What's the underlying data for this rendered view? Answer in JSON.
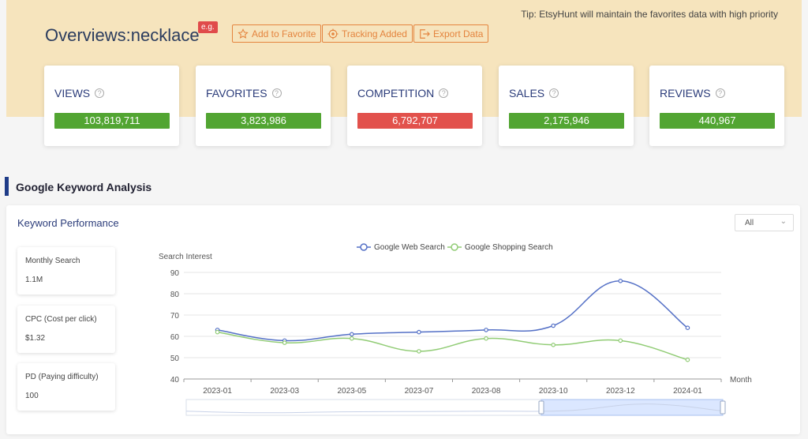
{
  "header": {
    "tip": "Tip: EtsyHunt will maintain the favorites data with high priority",
    "title": "Overviews:necklace",
    "badge": "e.g.",
    "buttons": [
      {
        "label": "Add to Favorite",
        "icon": "star-icon"
      },
      {
        "label": "Tracking Added",
        "icon": "target-icon"
      },
      {
        "label": "Export Data",
        "icon": "export-icon"
      }
    ]
  },
  "stats": [
    {
      "label": "VIEWS",
      "value": "103,819,711",
      "color": "#52a532"
    },
    {
      "label": "FAVORITES",
      "value": "3,823,986",
      "color": "#52a532"
    },
    {
      "label": "COMPETITION",
      "value": "6,792,707",
      "color": "#e2514c"
    },
    {
      "label": "SALES",
      "value": "2,175,946",
      "color": "#52a532"
    },
    {
      "label": "REVIEWS",
      "value": "440,967",
      "color": "#52a532"
    }
  ],
  "section": {
    "title": "Google Keyword Analysis"
  },
  "panel": {
    "title": "Keyword Performance",
    "filter": "All",
    "metrics": [
      {
        "label": "Monthly Search",
        "value": "1.1M"
      },
      {
        "label": "CPC (Cost per click)",
        "value": "$1.32"
      },
      {
        "label": "PD (Paying difficulty)",
        "value": "100"
      }
    ]
  },
  "chart_data": {
    "type": "line",
    "ylabel": "Search Interest",
    "xlabel": "Month",
    "ylim": [
      40,
      90
    ],
    "yticks": [
      40,
      50,
      60,
      70,
      80,
      90
    ],
    "x": [
      "2023-01",
      "2023-03",
      "2023-05",
      "2023-07",
      "2023-08",
      "2023-10",
      "2023-12",
      "2024-01"
    ],
    "series": [
      {
        "name": "Google Web Search",
        "color": "#5470c6",
        "values": [
          63,
          58,
          61,
          62,
          63,
          65,
          86,
          64
        ]
      },
      {
        "name": "Google Shopping Search",
        "color": "#91cc75",
        "values": [
          62,
          57,
          59,
          53,
          59,
          56,
          58,
          49
        ]
      }
    ],
    "legend": "top-center",
    "grid": true
  }
}
